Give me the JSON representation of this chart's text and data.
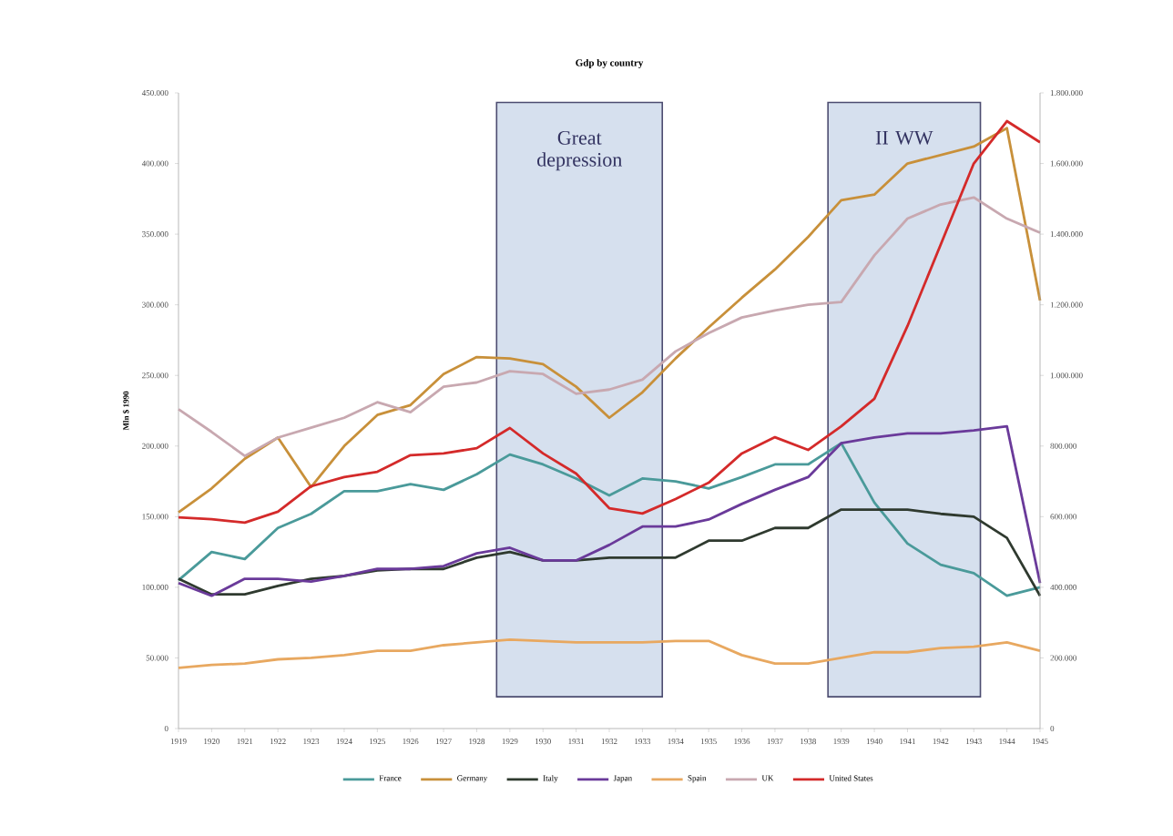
{
  "chart_data": {
    "type": "line",
    "title": "Gdp by country",
    "ylabel": "Mln $ 1990",
    "x": [
      1919,
      1920,
      1921,
      1922,
      1923,
      1924,
      1925,
      1926,
      1927,
      1928,
      1929,
      1930,
      1931,
      1932,
      1933,
      1934,
      1935,
      1936,
      1937,
      1938,
      1939,
      1940,
      1941,
      1942,
      1943,
      1944,
      1945
    ],
    "xlim": [
      1919,
      1945
    ],
    "xticks": [
      1919,
      1920,
      1921,
      1922,
      1923,
      1924,
      1925,
      1926,
      1927,
      1928,
      1929,
      1930,
      1931,
      1932,
      1933,
      1934,
      1935,
      1936,
      1937,
      1938,
      1939,
      1940,
      1941,
      1942,
      1943,
      1944,
      1945
    ],
    "ylim": [
      0,
      450000
    ],
    "yticks": [
      0,
      {
        "value": 50000,
        "label": "50.000"
      },
      {
        "value": 100000,
        "label": "100.000"
      },
      {
        "value": 150000,
        "label": "150.000"
      },
      {
        "value": 200000,
        "label": "200.000"
      },
      {
        "value": 250000,
        "label": "250.000"
      },
      {
        "value": 300000,
        "label": "300.000"
      },
      {
        "value": 350000,
        "label": "350.000"
      },
      {
        "value": 400000,
        "label": "400.000"
      },
      {
        "value": 450000,
        "label": "450.000"
      }
    ],
    "y2lim": [
      0,
      1800000
    ],
    "y2ticks": [
      0,
      {
        "value": 200000,
        "label": "200.000"
      },
      {
        "value": 400000,
        "label": "400.000"
      },
      {
        "value": 600000,
        "label": "600.000"
      },
      {
        "value": 800000,
        "label": "800.000"
      },
      {
        "value": 1000000,
        "label": "1.000.000"
      },
      {
        "value": 1200000,
        "label": "1.200.000"
      },
      {
        "value": 1400000,
        "label": "1.400.000"
      },
      {
        "value": 1600000,
        "label": "1.600.000"
      },
      {
        "value": 1800000,
        "label": "1.800.000"
      }
    ],
    "series": [
      {
        "name": "France",
        "color": "#4a9a9a",
        "values": [
          105000,
          125000,
          120000,
          142000,
          152000,
          168000,
          168000,
          173000,
          169000,
          180000,
          194000,
          187000,
          177000,
          165000,
          177000,
          175000,
          170000,
          178000,
          187000,
          187000,
          202000,
          160000,
          131000,
          116000,
          110000,
          94000,
          100000
        ]
      },
      {
        "name": "Germany",
        "color": "#c8903a",
        "values": [
          153000,
          170000,
          191000,
          206000,
          171000,
          200000,
          222000,
          229000,
          251000,
          263000,
          262000,
          258000,
          242000,
          220000,
          238000,
          262000,
          284000,
          305000,
          325000,
          348000,
          374000,
          378000,
          400000,
          406000,
          412000,
          425000,
          303000
        ]
      },
      {
        "name": "Italy",
        "color": "#2f3a2f",
        "values": [
          106000,
          95000,
          95000,
          101000,
          106000,
          108000,
          112000,
          113000,
          113000,
          121000,
          125000,
          119000,
          119000,
          121000,
          121000,
          121000,
          133000,
          133000,
          142000,
          142000,
          155000,
          155000,
          155000,
          152000,
          150000,
          135000,
          94000
        ]
      },
      {
        "name": "Japan",
        "color": "#6a3a9a",
        "values": [
          103000,
          94000,
          106000,
          106000,
          104000,
          108000,
          113000,
          113000,
          115000,
          124000,
          128000,
          119000,
          119000,
          130000,
          143000,
          143000,
          148000,
          159000,
          169000,
          178000,
          202000,
          206000,
          209000,
          209000,
          211000,
          214000,
          103000
        ]
      },
      {
        "name": "Spain",
        "color": "#e8a860",
        "values": [
          43000,
          45000,
          46000,
          49000,
          50000,
          52000,
          55000,
          55000,
          59000,
          61000,
          63000,
          62000,
          61000,
          61000,
          61000,
          62000,
          62000,
          52000,
          46000,
          46000,
          50000,
          54000,
          54000,
          57000,
          58000,
          61000,
          55000
        ]
      },
      {
        "name": "UK",
        "color": "#c8a8b0",
        "values": [
          226000,
          210000,
          193000,
          206000,
          213000,
          220000,
          231000,
          224000,
          242000,
          245000,
          253000,
          251000,
          237000,
          240000,
          247000,
          267000,
          280000,
          291000,
          296000,
          300000,
          302000,
          335000,
          361000,
          371000,
          376000,
          361000,
          351000
        ]
      },
      {
        "name": "United States",
        "color": "#d42a2a",
        "axis": "y2",
        "values": [
          598000,
          593000,
          583000,
          614000,
          686000,
          712000,
          727000,
          774000,
          779000,
          794000,
          851000,
          779000,
          722000,
          624000,
          609000,
          650000,
          696000,
          779000,
          825000,
          789000,
          856000,
          934000,
          1140000,
          1370000,
          1600000,
          1720000,
          1660000
        ]
      }
    ],
    "bands": [
      {
        "axis": "x",
        "from": 1928.6,
        "to": 1933.6,
        "label": "Great depression",
        "color": "#d6e0ee"
      },
      {
        "axis": "x",
        "from": 1938.6,
        "to": 1943.2,
        "label": "II WW",
        "color": "#d6e0ee"
      }
    ],
    "legend": "bottom",
    "grid": false,
    "marker": "none",
    "line_style": "solid"
  }
}
